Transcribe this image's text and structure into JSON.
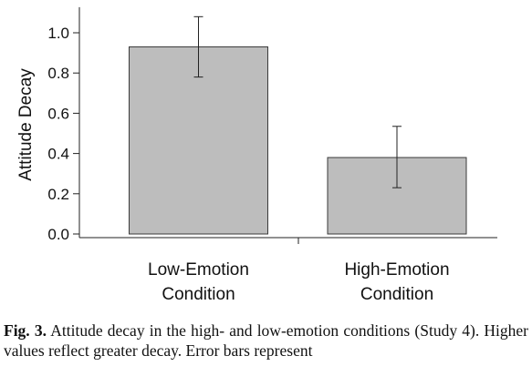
{
  "chart_data": {
    "type": "bar",
    "categories": [
      [
        "Low-Emotion",
        "Condition"
      ],
      [
        "High-Emotion",
        "Condition"
      ]
    ],
    "values": [
      0.93,
      0.38
    ],
    "error_low": [
      0.78,
      0.23
    ],
    "error_high": [
      1.08,
      0.535
    ],
    "ylabel": "Attitude Decay",
    "ylim": [
      0,
      1.1
    ],
    "yticks": [
      "0.0",
      "0.2",
      "0.4",
      "0.6",
      "0.8",
      "1.0"
    ],
    "grid": false,
    "bar_color": "#bdbdbd",
    "bar_edge_color": "#3a3a3a"
  },
  "caption": {
    "label": "Fig. 3.",
    "text": "Attitude decay in the high- and low-emotion conditions (Study 4). Higher values reflect greater decay. Error bars represent"
  }
}
